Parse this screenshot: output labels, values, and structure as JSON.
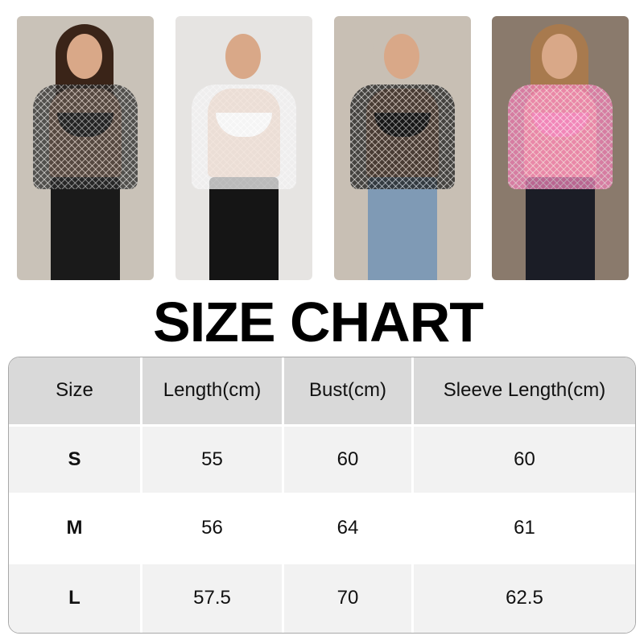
{
  "photos": [
    {
      "label": "model-black-mesh-top-leather-skirt",
      "bg": "#c9c2b8",
      "hair": "#3a2418",
      "top": "#2a2a2a",
      "bra": "#111111",
      "bottom": "#1a1a1a"
    },
    {
      "label": "model-white-mesh-top-black-jeans",
      "bg": "#e6e4e2",
      "hair": "#e6e4e2",
      "top": "#f2f2f2",
      "bra": "#ffffff",
      "bottom": "#151515"
    },
    {
      "label": "model-black-mesh-top-denim-shorts",
      "bg": "#c8bfb4",
      "hair": "#c8bfb4",
      "top": "#1a1a1a",
      "bra": "#111111",
      "bottom": "#7f9ab5"
    },
    {
      "label": "model-pink-mesh-top-black-jeans",
      "bg": "#8a7a6c",
      "hair": "#a87a4e",
      "top": "#f07fb5",
      "bra": "#f7a0c8",
      "bottom": "#1b1d26"
    }
  ],
  "title": "SIZE CHART",
  "table": {
    "headers": [
      "Size",
      "Length(cm)",
      "Bust(cm)",
      "Sleeve Length(cm)"
    ],
    "rows": [
      [
        "S",
        "55",
        "60",
        "60"
      ],
      [
        "M",
        "56",
        "64",
        "61"
      ],
      [
        "L",
        "57.5",
        "70",
        "62.5"
      ]
    ]
  }
}
